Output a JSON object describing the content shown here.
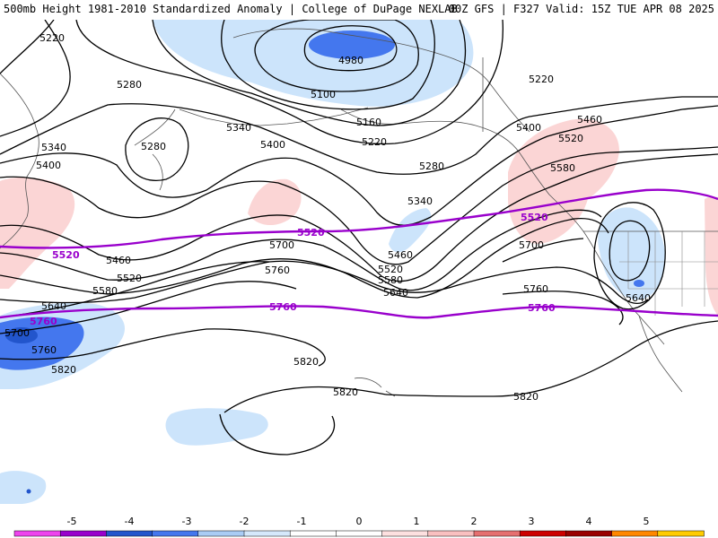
{
  "header": {
    "left_title": "500mb Height 1981-2010 Standardized Anomaly | College of DuPage NEXLAB",
    "right_title": "00Z GFS | F327 Valid: 15Z TUE APR 08 2025"
  },
  "map": {
    "contour_labels": [
      "5220",
      "4980",
      "5280",
      "5100",
      "5220",
      "5160",
      "5220",
      "5340",
      "5400",
      "5340",
      "5400",
      "5280",
      "5280",
      "5400",
      "5460",
      "5520",
      "5460",
      "5580",
      "5700",
      "5760",
      "5460",
      "5520",
      "5580",
      "5640",
      "5700",
      "5520",
      "5640",
      "5760",
      "5580",
      "5700",
      "5760",
      "5820",
      "5820",
      "5820",
      "5820",
      "5340",
      "5640"
    ],
    "reference_labels": [
      "5520",
      "5520",
      "5520",
      "5760",
      "5760",
      "5760"
    ],
    "colors": {
      "contour": "#000000",
      "reference_line": "#9900cc",
      "coastline": "#555555",
      "anomaly_neg_1": "#cce4fb",
      "anomaly_neg_2": "#4477ee",
      "anomaly_neg_3": "#2255cc",
      "anomaly_pos_1": "#fbd5d5",
      "anomaly_pos_2": "#f5b5b5"
    }
  },
  "colorbar": {
    "tick_labels": [
      "-5",
      "-4",
      "-3",
      "-2",
      "-1",
      "0",
      "1",
      "2",
      "3",
      "4",
      "5"
    ],
    "segment_colors": [
      "#ee44ee",
      "#9900cc",
      "#2255cc",
      "#4477ee",
      "#aaccf5",
      "#d5e8fb",
      "#ffffff",
      "#ffffff",
      "#fde0e0",
      "#f9c0c0",
      "#e57070",
      "#cc0000",
      "#990000",
      "#ff8800",
      "#ffcc00"
    ]
  }
}
